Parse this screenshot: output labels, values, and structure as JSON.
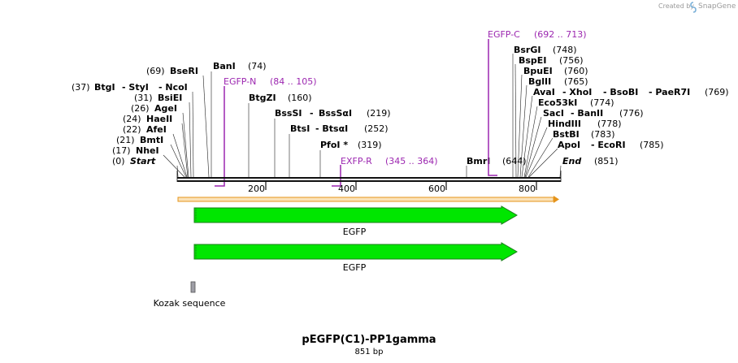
{
  "credit": {
    "text": "Created by",
    "brand": "SnapGene"
  },
  "title": "pEGFP(C1)-PP1gamma",
  "length_label": "851 bp",
  "ruler": {
    "ticks": [
      "200",
      "400",
      "600",
      "800"
    ]
  },
  "sites": [
    {
      "pos": "(37)",
      "names": [
        "BtgI",
        "- StyI",
        "- NcoI"
      ]
    },
    {
      "pos": "(31)",
      "names": [
        "BsiEI"
      ]
    },
    {
      "pos": "(26)",
      "names": [
        "AgeI"
      ]
    },
    {
      "pos": "(24)",
      "names": [
        "HaeII"
      ]
    },
    {
      "pos": "(22)",
      "names": [
        "AfeI"
      ]
    },
    {
      "pos": "(21)",
      "names": [
        "BmtI"
      ]
    },
    {
      "pos": "(17)",
      "names": [
        "NheI"
      ]
    },
    {
      "pos": "(0)",
      "names": [
        "Start"
      ]
    },
    {
      "pos": "(69)",
      "names": [
        "BseRI"
      ]
    },
    {
      "pos": "(74)",
      "names": [
        "BanI"
      ]
    },
    {
      "pos": "(160)",
      "names": [
        "BtgZI"
      ]
    },
    {
      "pos": "(219)",
      "names": [
        "BssSI",
        "BssSαI"
      ]
    },
    {
      "pos": "(252)",
      "names": [
        "BtsI",
        "- BtsαI"
      ]
    },
    {
      "pos": "(319)",
      "names": [
        "PfoI *"
      ]
    },
    {
      "pos": "(644)",
      "names": [
        "BmrI"
      ]
    },
    {
      "pos": "(748)",
      "names": [
        "BsrGI"
      ]
    },
    {
      "pos": "(756)",
      "names": [
        "BspEI"
      ]
    },
    {
      "pos": "(760)",
      "names": [
        "BpuEI"
      ]
    },
    {
      "pos": "(765)",
      "names": [
        "BglII"
      ]
    },
    {
      "pos": "(769)",
      "names": [
        "AvaI",
        "- XhoI",
        "- BsoBI",
        "- PaeR7I"
      ]
    },
    {
      "pos": "(774)",
      "names": [
        "Eco53kI"
      ]
    },
    {
      "pos": "(776)",
      "names": [
        "SacI",
        "- BanII"
      ]
    },
    {
      "pos": "(778)",
      "names": [
        "HindIII"
      ]
    },
    {
      "pos": "(783)",
      "names": [
        "BstBI"
      ]
    },
    {
      "pos": "(785)",
      "names": [
        "ApoI",
        "- EcoRI"
      ]
    },
    {
      "pos": "(851)",
      "names": [
        "End"
      ]
    }
  ],
  "primers": [
    {
      "name": "EGFP-N",
      "range": "(84 .. 105)"
    },
    {
      "name": "EXFP-R",
      "range": "(345 .. 364)"
    },
    {
      "name": "EGFP-C",
      "range": "(692 .. 713)"
    }
  ],
  "features": [
    {
      "name": "EGFP"
    },
    {
      "name": "EGFP"
    },
    {
      "name": "Kozak sequence"
    }
  ],
  "colors": {
    "primer": "#9c27b0",
    "egfp": "#00e600",
    "orf": "#f5a623",
    "kozak": "#9e9ea6"
  }
}
